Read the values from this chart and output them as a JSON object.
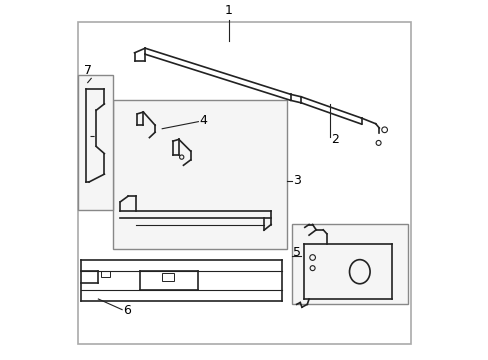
{
  "background_color": "#ffffff",
  "outer_border_color": "#aaaaaa",
  "line_color": "#222222",
  "label_color": "#000000",
  "fig_width": 4.89,
  "fig_height": 3.6,
  "dpi": 100
}
